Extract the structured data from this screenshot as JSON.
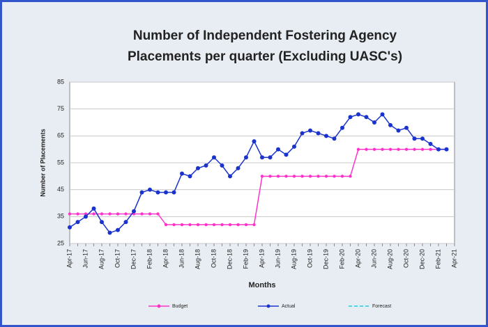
{
  "chart_data": {
    "type": "line",
    "title": [
      "Number of Independent Fostering Agency",
      "Placements per quarter (Excluding UASC's)"
    ],
    "y_label": "Number of Placements",
    "x_label": "Months",
    "categories": [
      "Apr-17",
      null,
      "Jun-17",
      null,
      "Aug-17",
      null,
      "Oct-17",
      null,
      "Dec-17",
      null,
      "Feb-18",
      null,
      "Apr-18",
      null,
      "Jun-18",
      null,
      "Aug-18",
      null,
      "Oct-18",
      null,
      "Dec-18",
      null,
      "Feb-19",
      null,
      "Apr-19",
      null,
      "Jun-19",
      null,
      "Aug-19",
      null,
      "Oct-19",
      null,
      "Dec-19",
      null,
      "Feb-20",
      null,
      "Apr-20",
      null,
      "Jun-20",
      null,
      "Aug-20",
      null,
      "Oct-20",
      null,
      "Dec-20",
      null,
      "Feb-21",
      null,
      "Apr-21"
    ],
    "series": [
      {
        "name": "Budget",
        "color": "#ff33cc",
        "style": "solid",
        "values": [
          36,
          36,
          36,
          36,
          36,
          36,
          36,
          36,
          36,
          36,
          36,
          36,
          32,
          32,
          32,
          32,
          32,
          32,
          32,
          32,
          32,
          32,
          32,
          32,
          50,
          50,
          50,
          50,
          50,
          50,
          50,
          50,
          50,
          50,
          50,
          50,
          60,
          60,
          60,
          60,
          60,
          60,
          60,
          60,
          60,
          60,
          60,
          60,
          null
        ]
      },
      {
        "name": "Actual",
        "color": "#1a33cc",
        "style": "solid",
        "values": [
          31,
          33,
          35,
          38,
          33,
          29,
          30,
          33,
          37,
          44,
          45,
          44,
          44,
          44,
          51,
          50,
          53,
          54,
          57,
          54,
          50,
          53,
          57,
          63,
          57,
          57,
          60,
          58,
          61,
          66,
          67,
          66,
          65,
          64,
          68,
          72,
          73,
          72,
          70,
          73,
          69,
          67,
          68,
          64,
          64,
          62,
          60,
          60,
          null
        ]
      },
      {
        "name": "Forecast",
        "color": "#22ccdd",
        "style": "dashed",
        "values": [
          null,
          null,
          null,
          null,
          null,
          null,
          null,
          null,
          null,
          null,
          null,
          null,
          null,
          null,
          null,
          null,
          null,
          null,
          null,
          null,
          null,
          null,
          null,
          null,
          null,
          null,
          null,
          null,
          null,
          null,
          null,
          null,
          null,
          null,
          null,
          null,
          null,
          null,
          null,
          null,
          null,
          null,
          null,
          null,
          null,
          null,
          null,
          null,
          null
        ]
      }
    ],
    "ylim": [
      25,
      85
    ],
    "yticks": [
      25,
      35,
      45,
      55,
      65,
      75,
      85
    ],
    "grid": true,
    "legend": "bottom"
  }
}
